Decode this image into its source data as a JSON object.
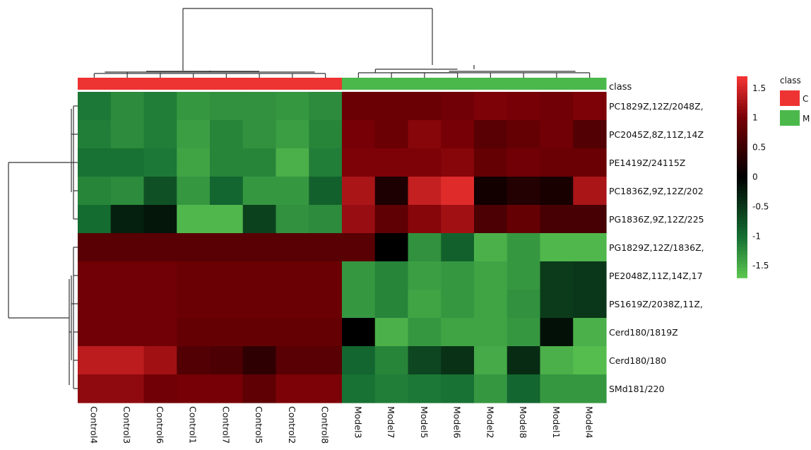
{
  "chart_data": {
    "type": "heatmap",
    "title": "",
    "class_label": "class",
    "legend_title": "class",
    "legend_entries": [
      {
        "label": "C",
        "color": "#ee3333"
      },
      {
        "label": "M",
        "color": "#4bb84b"
      }
    ],
    "colorbar_ticks": [
      "1.5",
      "1",
      "0.5",
      "0",
      "-0.5",
      "-1",
      "-1.5"
    ],
    "colorbar_range": [
      -1.7,
      1.7
    ],
    "columns": [
      "Control4",
      "Control3",
      "Control6",
      "Control1",
      "Control7",
      "Control5",
      "Control2",
      "Control8",
      "Model3",
      "Model7",
      "Model5",
      "Model6",
      "Model2",
      "Model8",
      "Model1",
      "Model4"
    ],
    "column_class": [
      "C",
      "C",
      "C",
      "C",
      "C",
      "C",
      "C",
      "C",
      "M",
      "M",
      "M",
      "M",
      "M",
      "M",
      "M",
      "M"
    ],
    "rows": [
      "PC1829Z,12Z/2048Z,",
      "PC2045Z,8Z,11Z,14Z",
      "PE1419Z/24115Z",
      "PC1836Z,9Z,12Z/202",
      "PG1836Z,9Z,12Z/225",
      "PG1829Z,12Z/1836Z,",
      "PE2048Z,11Z,14Z,17",
      "PS1619Z/2038Z,11Z,",
      "Cerd180/1819Z",
      "Cerd180/180",
      "SMd181/220"
    ],
    "values": [
      [
        -1.1,
        -1.25,
        -1.15,
        -1.35,
        -1.3,
        -1.3,
        -1.35,
        -1.25,
        0.9,
        0.9,
        0.9,
        0.95,
        1.05,
        1.0,
        0.95,
        1.05
      ],
      [
        -1.15,
        -1.25,
        -1.15,
        -1.4,
        -1.2,
        -1.3,
        -1.4,
        -1.2,
        1.0,
        0.9,
        1.1,
        1.0,
        0.75,
        0.85,
        0.95,
        0.7
      ],
      [
        -1.05,
        -1.05,
        -1.1,
        -1.45,
        -1.2,
        -1.2,
        -1.55,
        -1.15,
        1.05,
        1.05,
        1.05,
        1.1,
        0.85,
        0.95,
        0.9,
        0.9
      ],
      [
        -1.2,
        -1.25,
        -0.75,
        -1.35,
        -0.95,
        -1.35,
        -1.35,
        -0.9,
        1.3,
        0.25,
        1.45,
        1.6,
        0.15,
        0.3,
        0.2,
        1.3
      ],
      [
        -1.0,
        -0.3,
        -0.2,
        -1.6,
        -1.6,
        -0.6,
        -1.3,
        -1.25,
        1.2,
        0.8,
        1.1,
        1.25,
        0.65,
        0.85,
        0.6,
        0.6
      ],
      [
        0.75,
        0.75,
        0.75,
        0.75,
        0.75,
        0.75,
        0.75,
        0.75,
        0.75,
        0.0,
        -1.3,
        -0.9,
        -1.55,
        -1.35,
        -1.6,
        -1.6
      ],
      [
        0.95,
        0.95,
        0.95,
        0.9,
        0.9,
        0.9,
        0.9,
        0.9,
        -1.35,
        -1.2,
        -1.4,
        -1.35,
        -1.45,
        -1.35,
        -0.55,
        -0.5
      ],
      [
        0.95,
        0.95,
        0.95,
        0.9,
        0.9,
        0.9,
        0.9,
        0.9,
        -1.35,
        -1.2,
        -1.45,
        -1.35,
        -1.45,
        -1.3,
        -0.55,
        -0.5
      ],
      [
        0.95,
        0.95,
        0.95,
        0.85,
        0.85,
        0.85,
        0.85,
        0.85,
        0.0,
        -1.55,
        -1.35,
        -1.45,
        -1.45,
        -1.35,
        -0.15,
        -1.55
      ],
      [
        1.4,
        1.4,
        1.25,
        0.7,
        0.65,
        0.4,
        0.75,
        0.75,
        -0.95,
        -1.2,
        -0.65,
        -0.45,
        -1.5,
        -0.4,
        -1.55,
        -1.65
      ],
      [
        1.15,
        1.15,
        0.95,
        1.0,
        1.0,
        0.8,
        1.05,
        1.05,
        -1.05,
        -1.15,
        -1.1,
        -1.05,
        -1.35,
        -0.95,
        -1.35,
        -1.35
      ]
    ],
    "grid": false,
    "legend_position": "right"
  }
}
